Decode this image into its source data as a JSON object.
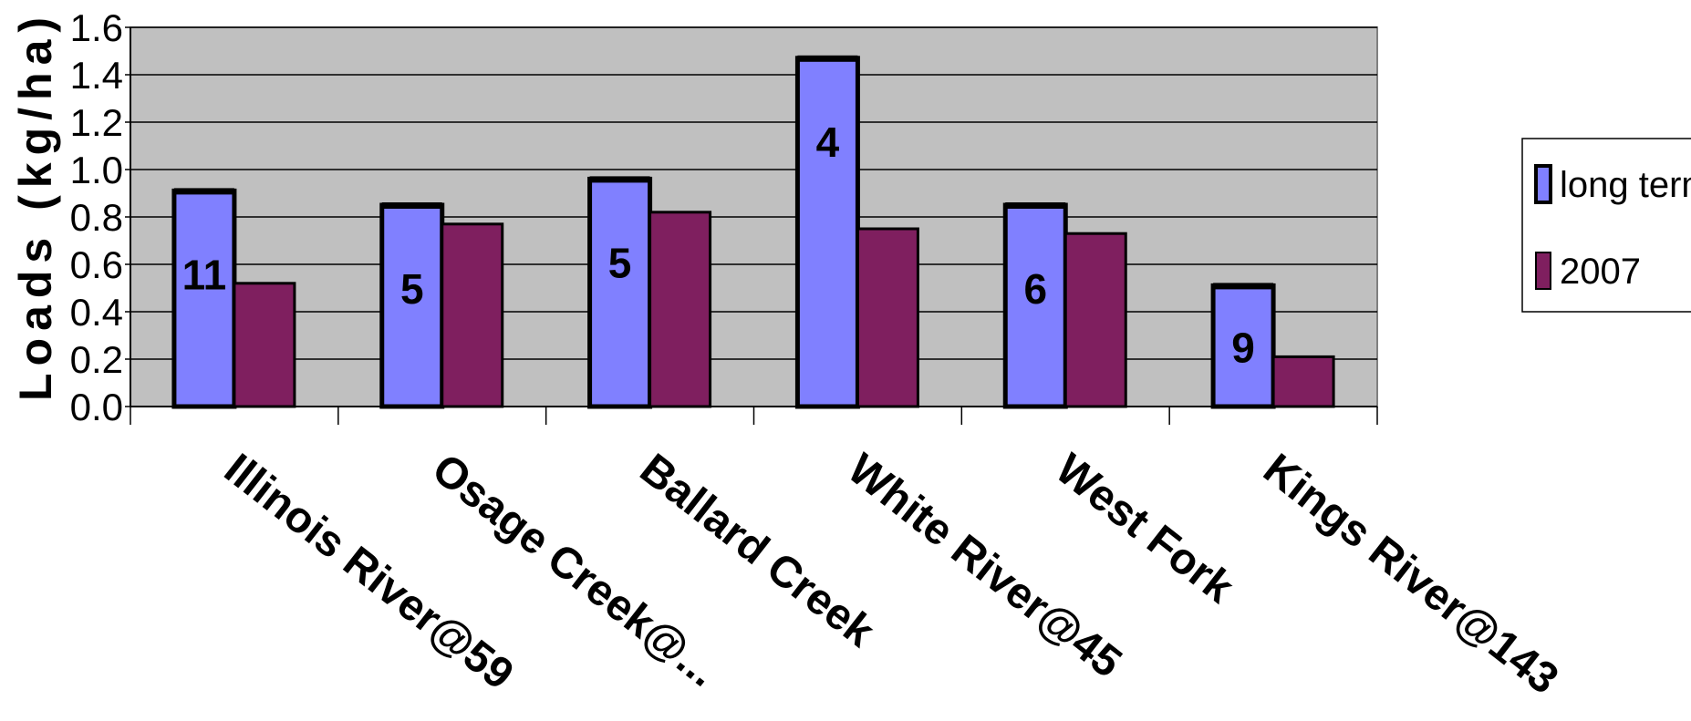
{
  "chart_data": {
    "type": "bar",
    "title": "",
    "xlabel": "",
    "ylabel": "Loads (kg/ha)",
    "ylim": [
      0,
      1.6
    ],
    "yticks": [
      "0.0",
      "0.2",
      "0.4",
      "0.6",
      "0.8",
      "1.0",
      "1.2",
      "1.4",
      "1.6"
    ],
    "categories": [
      "Illinois River@59",
      "Osage Creek@...",
      "Ballard Creek",
      "White River@45",
      "West Fork",
      "Kings River@143"
    ],
    "series": [
      {
        "name": "long term",
        "color": "#8080FF",
        "values": [
          0.91,
          0.85,
          0.96,
          1.47,
          0.85,
          0.51
        ],
        "labels": [
          "11",
          "5",
          "5",
          "4",
          "6",
          "9"
        ]
      },
      {
        "name": "2007",
        "color": "#7F1F5F",
        "values": [
          0.52,
          0.77,
          0.82,
          0.75,
          0.73,
          0.21
        ]
      }
    ],
    "grid": true,
    "plot_background": "#C0C0C0",
    "legend_position": "right"
  }
}
